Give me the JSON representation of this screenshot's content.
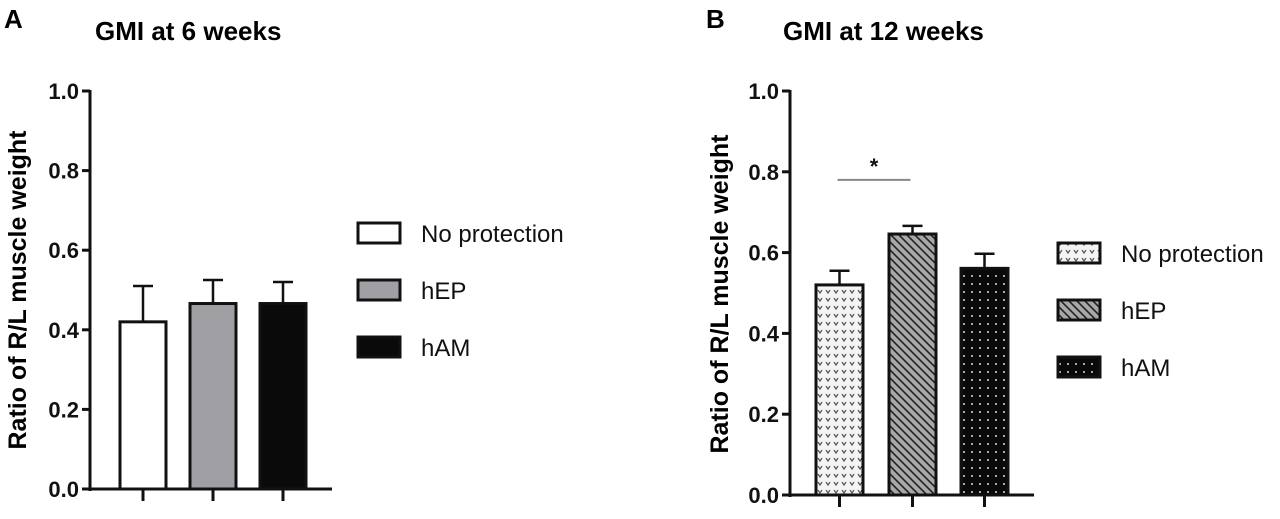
{
  "chart_data": [
    {
      "panel_label": "A",
      "type": "bar",
      "title": "GMI at 6 weeks",
      "ylabel": "Ratio of R/L muscle weight",
      "xlabel": "",
      "ylim": [
        0,
        1.0
      ],
      "yticks": [
        "0.0",
        "0.2",
        "0.4",
        "0.6",
        "0.8",
        "1.0"
      ],
      "grid": false,
      "legend_position": "right",
      "categories": [
        "No protection",
        "hEP",
        "hAM"
      ],
      "values": [
        0.42,
        0.466,
        0.466
      ],
      "error_upper": [
        0.51,
        0.525,
        0.52
      ],
      "fills": [
        "#ffffff",
        "#a0a0a4",
        "#0a0a0a"
      ],
      "legend": [
        "No protection",
        "hEP",
        "hAM"
      ]
    },
    {
      "panel_label": "B",
      "type": "bar",
      "title": "GMI at 12 weeks",
      "ylabel": "Ratio of R/L muscle weight",
      "xlabel": "",
      "ylim": [
        0,
        1.0
      ],
      "yticks": [
        "0.0",
        "0.2",
        "0.4",
        "0.6",
        "0.8",
        "1.0"
      ],
      "grid": false,
      "legend_position": "right",
      "categories": [
        "No protection",
        "hEP",
        "hAM"
      ],
      "values": [
        0.52,
        0.646,
        0.561
      ],
      "error_upper": [
        0.555,
        0.666,
        0.597
      ],
      "fills": [
        "pattern-hearts",
        "pattern-diagonal",
        "pattern-dots"
      ],
      "legend": [
        "No protection",
        "hEP",
        "hAM"
      ],
      "annotation": {
        "text": "*",
        "between": [
          "No protection",
          "hEP"
        ],
        "y": 0.78
      }
    }
  ]
}
